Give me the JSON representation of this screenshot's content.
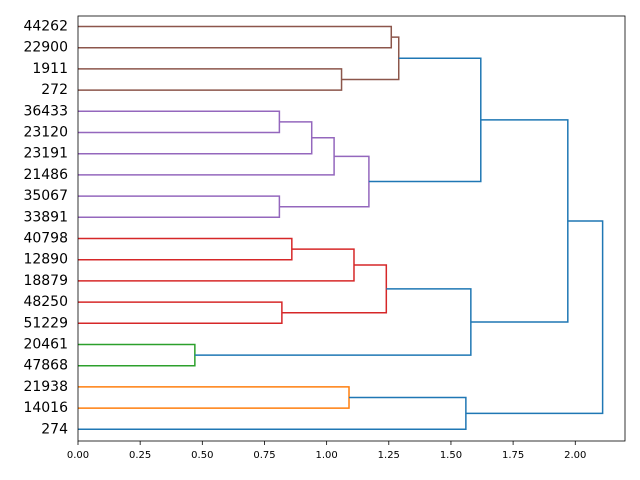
{
  "chart_data": {
    "type": "dendrogram",
    "orientation": "left",
    "title": "",
    "xlabel": "",
    "ylabel": "",
    "xlim": [
      0,
      2.2
    ],
    "xticks": [
      "0.00",
      "0.25",
      "0.50",
      "0.75",
      "1.00",
      "1.25",
      "1.50",
      "1.75",
      "2.00"
    ],
    "leaves": [
      "44262",
      "22900",
      "1911",
      "272",
      "36433",
      "23120",
      "23191",
      "21486",
      "35067",
      "33891",
      "40798",
      "12890",
      "18879",
      "48250",
      "51229",
      "20461",
      "47868",
      "21938",
      "14016",
      "274"
    ],
    "merges": [
      {
        "left": "L0",
        "right": "L1",
        "height": 1.26,
        "color": "#8c564b"
      },
      {
        "left": "L2",
        "right": "L3",
        "height": 1.06,
        "color": "#8c564b"
      },
      {
        "left": "m0",
        "right": "m1",
        "height": 1.29,
        "color": "#8c564b"
      },
      {
        "left": "L4",
        "right": "L5",
        "height": 0.81,
        "color": "#9467bd"
      },
      {
        "left": "m3",
        "right": "L6",
        "height": 0.94,
        "color": "#9467bd"
      },
      {
        "left": "m4",
        "right": "L7",
        "height": 1.03,
        "color": "#9467bd"
      },
      {
        "left": "L8",
        "right": "L9",
        "height": 0.81,
        "color": "#9467bd"
      },
      {
        "left": "m5",
        "right": "m6",
        "height": 1.17,
        "color": "#9467bd"
      },
      {
        "left": "m2",
        "right": "m7",
        "height": 1.62,
        "color": "#1f77b4"
      },
      {
        "left": "L10",
        "right": "L11",
        "height": 0.86,
        "color": "#d62728"
      },
      {
        "left": "m9",
        "right": "L12",
        "height": 1.11,
        "color": "#d62728"
      },
      {
        "left": "L13",
        "right": "L14",
        "height": 0.82,
        "color": "#d62728"
      },
      {
        "left": "m10",
        "right": "m11",
        "height": 1.24,
        "color": "#d62728"
      },
      {
        "left": "L15",
        "right": "L16",
        "height": 0.47,
        "color": "#2ca02c"
      },
      {
        "left": "m12",
        "right": "m13",
        "height": 1.58,
        "color": "#1f77b4"
      },
      {
        "left": "m8",
        "right": "m14",
        "height": 1.97,
        "color": "#1f77b4"
      },
      {
        "left": "L17",
        "right": "L18",
        "height": 1.09,
        "color": "#ff7f0e"
      },
      {
        "left": "m16",
        "right": "L19",
        "height": 1.56,
        "color": "#1f77b4"
      },
      {
        "left": "m15",
        "right": "m17",
        "height": 2.11,
        "color": "#1f77b4"
      }
    ]
  }
}
